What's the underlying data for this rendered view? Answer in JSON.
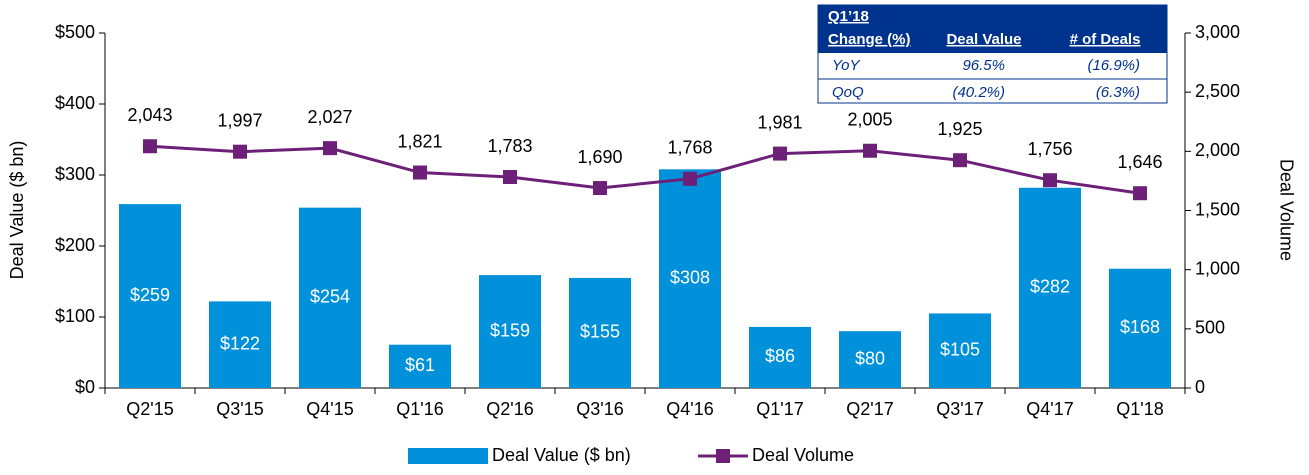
{
  "chart_data": {
    "type": "combo",
    "categories": [
      "Q2'15",
      "Q3'15",
      "Q4'15",
      "Q1'16",
      "Q2'16",
      "Q3'16",
      "Q4'16",
      "Q1'17",
      "Q2'17",
      "Q3'17",
      "Q4'17",
      "Q1'18"
    ],
    "series": [
      {
        "name": "Deal Value ($ bn)",
        "type": "bar",
        "color": "#0091da",
        "values": [
          259,
          122,
          254,
          61,
          159,
          155,
          308,
          86,
          80,
          105,
          282,
          168
        ],
        "value_labels": [
          "$259",
          "$122",
          "$254",
          "$61",
          "$159",
          "$155",
          "$308",
          "$86",
          "$80",
          "$105",
          "$282",
          "$168"
        ]
      },
      {
        "name": "Deal Volume",
        "type": "line",
        "axis": "y2",
        "color": "#6d2077",
        "values": [
          2043,
          1997,
          2027,
          1821,
          1783,
          1690,
          1768,
          1981,
          2005,
          1925,
          1756,
          1646
        ],
        "value_labels": [
          "2,043",
          "1,997",
          "2,027",
          "1,821",
          "1,783",
          "1,690",
          "1,768",
          "1,981",
          "2,005",
          "1,925",
          "1,756",
          "1,646"
        ]
      }
    ],
    "y_label": "Deal Value ($ bn)",
    "y2_label": "Deal Volume",
    "ylim": [
      0,
      500
    ],
    "yticks": [
      {
        "value": 0,
        "label": "$0"
      },
      {
        "value": 100,
        "label": "$100"
      },
      {
        "value": 200,
        "label": "$200"
      },
      {
        "value": 300,
        "label": "$300"
      },
      {
        "value": 400,
        "label": "$400"
      },
      {
        "value": 500,
        "label": "$500"
      }
    ],
    "y2lim": [
      0,
      3000
    ],
    "y2ticks": [
      0,
      500,
      {
        "value": 1000,
        "label": "1,000"
      },
      {
        "value": 1500,
        "label": "1,500"
      },
      {
        "value": 2000,
        "label": "2,000"
      },
      {
        "value": 2500,
        "label": "2,500"
      },
      {
        "value": 3000,
        "label": "3,000"
      }
    ],
    "grid": false,
    "legend": "bottom"
  },
  "table": {
    "title": "Q1’18",
    "header": [
      "Change (%)",
      "Deal Value",
      "# of Deals"
    ],
    "rows": [
      [
        "YoY",
        "96.5%",
        "(16.9%)"
      ],
      [
        "QoQ",
        "(40.2%)",
        "(6.3%)"
      ]
    ]
  }
}
